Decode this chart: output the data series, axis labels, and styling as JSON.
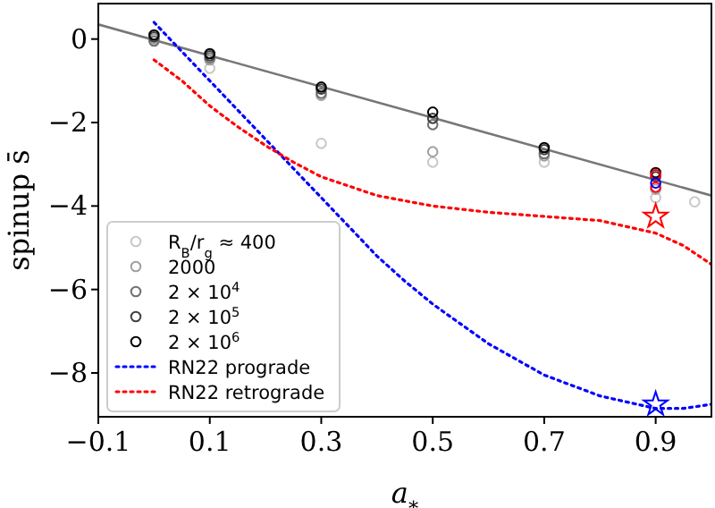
{
  "chart_data": {
    "type": "scatter",
    "xlabel": "a$_{*}$",
    "ylabel": "spinup s̄",
    "xlim": [
      -0.1,
      1.0
    ],
    "ylim": [
      -9.05,
      0.85
    ],
    "xticks": [
      {
        "value": -0.1,
        "label": "−0.1"
      },
      0.1,
      0.3,
      0.5,
      0.7,
      0.9
    ],
    "yticks": [
      {
        "value": -8,
        "label": "−8"
      },
      {
        "value": -6,
        "label": "−6"
      },
      {
        "value": -4,
        "label": "−4"
      },
      {
        "value": -2,
        "label": "−2"
      },
      0
    ],
    "legend": "bottom left",
    "marker": "circle",
    "series": [
      {
        "type": "line",
        "color": "#777777",
        "line_style": "solid",
        "marker": "none",
        "x": [
          -0.1,
          1.0
        ],
        "values": [
          0.35,
          -3.75
        ]
      },
      {
        "name": "R$_{B}$/r$_{g}$ ≈ 400",
        "color": "#c8c8c8",
        "x": [
          0,
          0.1,
          0.3,
          0.5,
          0.7,
          0.9,
          0.97
        ],
        "values": [
          0.0,
          -0.7,
          -2.5,
          -2.95,
          -2.95,
          -3.8,
          -3.9
        ]
      },
      {
        "name": "2000",
        "color": "#a0a0a0",
        "x": [
          0,
          0.1,
          0.3,
          0.5,
          0.7,
          0.9
        ],
        "values": [
          0.0,
          -0.5,
          -1.35,
          -2.7,
          -2.8,
          -3.6
        ]
      },
      {
        "name": "2 × 10$^{4}$",
        "color": "#707070",
        "x": [
          0,
          0.1,
          0.3,
          0.5,
          0.7
        ],
        "values": [
          -0.05,
          -0.45,
          -1.3,
          -2.05,
          -2.75
        ]
      },
      {
        "name": "2 × 10$^{5}$",
        "color": "#404040",
        "x": [
          0,
          0.1,
          0.3,
          0.5,
          0.7,
          0.9
        ],
        "values": [
          0.05,
          -0.4,
          -1.2,
          -1.9,
          -2.65,
          -3.3
        ]
      },
      {
        "name": "2 × 10$^{6}$",
        "color": "#000000",
        "x": [
          0,
          0.1,
          0.3,
          0.5,
          0.7,
          0.9
        ],
        "values": [
          0.1,
          -0.35,
          -1.15,
          -1.75,
          -2.6,
          -3.2
        ]
      },
      {
        "color": "#ff0000",
        "x": [
          0.9,
          0.9
        ],
        "values": [
          -3.25,
          -3.55
        ]
      },
      {
        "color": "#0000ff",
        "x": [
          0.9
        ],
        "values": [
          -3.45
        ]
      },
      {
        "name": "RN22 prograde",
        "type": "line",
        "color": "#0000ff",
        "line_style": "dotted",
        "marker": "none",
        "x": [
          0,
          0.05,
          0.1,
          0.15,
          0.2,
          0.25,
          0.3,
          0.35,
          0.4,
          0.45,
          0.5,
          0.6,
          0.7,
          0.8,
          0.9,
          0.95,
          1.0
        ],
        "values": [
          0.4,
          -0.3,
          -1.0,
          -1.7,
          -2.4,
          -3.1,
          -3.8,
          -4.5,
          -5.2,
          -5.8,
          -6.35,
          -7.3,
          -8.05,
          -8.55,
          -8.85,
          -8.85,
          -8.75
        ]
      },
      {
        "name": "RN22 retrograde",
        "type": "line",
        "color": "#ff0000",
        "line_style": "dotted",
        "marker": "none",
        "x": [
          0,
          0.05,
          0.1,
          0.15,
          0.2,
          0.25,
          0.3,
          0.4,
          0.5,
          0.6,
          0.7,
          0.8,
          0.9,
          0.95,
          1.0
        ],
        "values": [
          -0.5,
          -1.0,
          -1.6,
          -2.1,
          -2.55,
          -2.95,
          -3.3,
          -3.75,
          -4.0,
          -4.15,
          -4.25,
          -4.35,
          -4.65,
          -4.95,
          -5.4
        ]
      },
      {
        "color": "#ff0000",
        "marker": "star",
        "x": [
          0.9
        ],
        "values": [
          -4.25
        ]
      },
      {
        "color": "#0000ff",
        "marker": "star",
        "x": [
          0.9
        ],
        "values": [
          -8.75
        ]
      }
    ]
  }
}
